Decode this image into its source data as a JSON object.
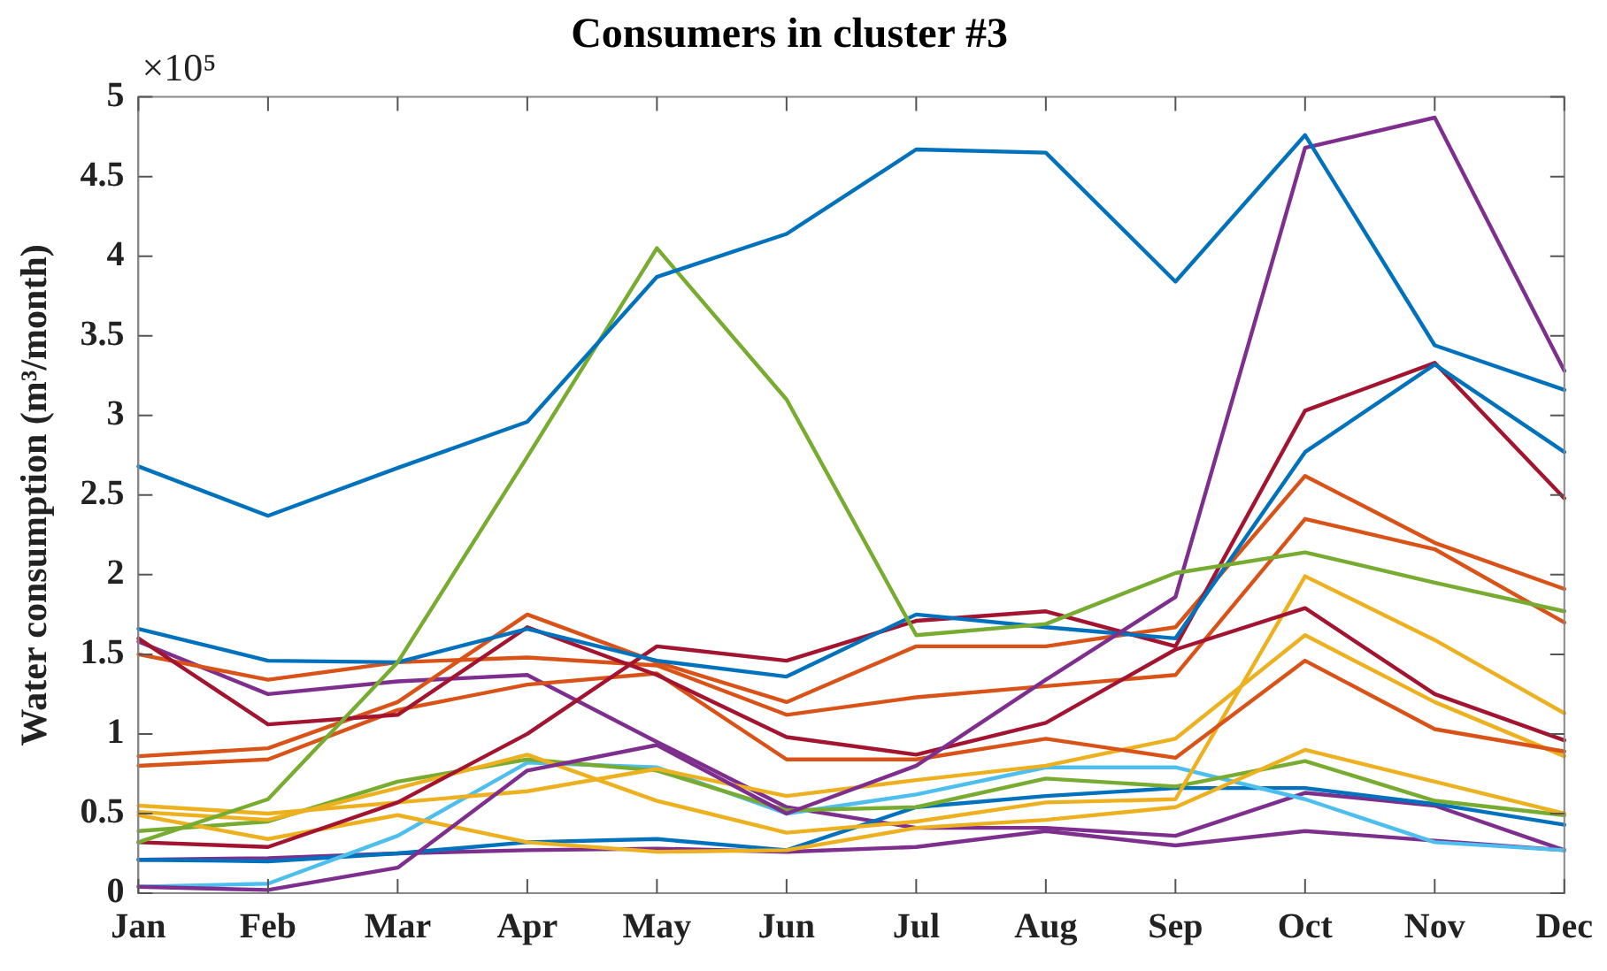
{
  "chart_data": {
    "type": "line",
    "title": "Consumers in cluster #3",
    "ylabel": "Water consumption (m³/month)",
    "annotations": [
      "×10⁵"
    ],
    "categories": [
      "Jan",
      "Feb",
      "Mar",
      "Apr",
      "May",
      "Jun",
      "Jul",
      "Aug",
      "Sep",
      "Oct",
      "Nov",
      "Dec"
    ],
    "ylim": [
      0,
      5
    ],
    "yticks": [
      0,
      0.5,
      1,
      1.5,
      2,
      2.5,
      3,
      3.5,
      4,
      4.5,
      5
    ],
    "grid": false,
    "line_style": "solid",
    "series": [
      {
        "color": "#0072bd",
        "values": [
          2.68,
          2.37,
          2.67,
          2.96,
          3.87,
          4.14,
          4.67,
          4.65,
          3.84,
          4.76,
          3.44,
          3.16
        ]
      },
      {
        "color": "#77ac30",
        "values": [
          0.32,
          0.59,
          1.45,
          2.74,
          4.05,
          3.1,
          1.62,
          1.69,
          2.01,
          2.14,
          1.95,
          1.77
        ]
      },
      {
        "color": "#7e2f8e",
        "values": [
          0.04,
          0.02,
          0.16,
          0.77,
          0.93,
          0.5,
          0.8,
          1.34,
          1.86,
          4.68,
          4.87,
          3.28
        ]
      },
      {
        "color": "#0072bd",
        "values": [
          1.66,
          1.46,
          1.45,
          1.66,
          1.46,
          1.36,
          1.75,
          1.67,
          1.6,
          2.77,
          3.32,
          2.77
        ]
      },
      {
        "color": "#a2142f",
        "values": [
          1.6,
          1.06,
          1.12,
          1.67,
          1.37,
          0.98,
          0.87,
          1.07,
          1.53,
          1.79,
          1.25,
          0.96
        ]
      },
      {
        "color": "#a2142f",
        "values": [
          0.32,
          0.29,
          0.57,
          1.0,
          1.55,
          1.46,
          1.71,
          1.77,
          1.55,
          3.03,
          3.33,
          2.48
        ]
      },
      {
        "color": "#d95319",
        "values": [
          0.86,
          0.91,
          1.2,
          1.75,
          1.45,
          1.2,
          1.55,
          1.55,
          1.67,
          2.62,
          2.2,
          1.91
        ]
      },
      {
        "color": "#d95319",
        "values": [
          1.5,
          1.34,
          1.45,
          1.48,
          1.43,
          1.12,
          1.23,
          1.3,
          1.37,
          2.35,
          2.16,
          1.7
        ]
      },
      {
        "color": "#d95319",
        "values": [
          0.8,
          0.84,
          1.15,
          1.31,
          1.38,
          0.84,
          0.84,
          0.97,
          0.85,
          1.46,
          1.03,
          0.89
        ]
      },
      {
        "color": "#edb120",
        "values": [
          0.55,
          0.5,
          0.57,
          0.64,
          0.78,
          0.61,
          0.71,
          0.8,
          0.97,
          1.62,
          1.2,
          0.86
        ]
      },
      {
        "color": "#edb120",
        "values": [
          0.51,
          0.46,
          0.66,
          0.87,
          0.58,
          0.38,
          0.45,
          0.57,
          0.59,
          1.99,
          1.59,
          1.13
        ]
      },
      {
        "color": "#edb120",
        "values": [
          0.49,
          0.34,
          0.49,
          0.32,
          0.26,
          0.27,
          0.41,
          0.46,
          0.54,
          0.9,
          0.7,
          0.5
        ]
      },
      {
        "color": "#77ac30",
        "values": [
          0.39,
          0.45,
          0.7,
          0.84,
          0.77,
          0.52,
          0.54,
          0.72,
          0.67,
          0.83,
          0.58,
          0.49
        ]
      },
      {
        "color": "#4dbeee",
        "values": [
          0.04,
          0.06,
          0.36,
          0.82,
          0.79,
          0.5,
          0.62,
          0.79,
          0.79,
          0.59,
          0.32,
          0.27
        ]
      },
      {
        "color": "#0072bd",
        "values": [
          0.21,
          0.2,
          0.25,
          0.32,
          0.34,
          0.27,
          0.54,
          0.61,
          0.66,
          0.66,
          0.56,
          0.43
        ]
      },
      {
        "color": "#7e2f8e",
        "values": [
          1.58,
          1.25,
          1.33,
          1.37,
          0.95,
          0.54,
          0.41,
          0.41,
          0.36,
          0.63,
          0.55,
          0.27
        ]
      },
      {
        "color": "#7e2f8e",
        "values": [
          0.21,
          0.22,
          0.25,
          0.27,
          0.28,
          0.26,
          0.29,
          0.39,
          0.3,
          0.39,
          0.33,
          0.27
        ]
      }
    ]
  }
}
